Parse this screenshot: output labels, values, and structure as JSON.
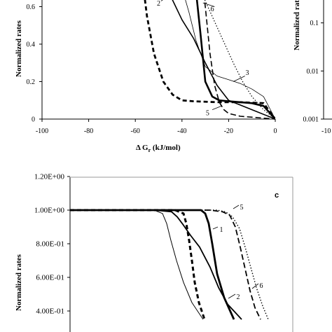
{
  "chart_data": [
    {
      "panel": "top-left",
      "type": "line",
      "xlabel": "Δ G_r (kJ/mol)",
      "xlabel_main": "Δ G",
      "xlabel_sub": "r",
      "xlabel_units": " (kJ/mol)",
      "ylabel": "Normalized rates",
      "xlim": [
        -100,
        0
      ],
      "ylim": [
        0,
        0.8
      ],
      "xticks": [
        "-100",
        "-80",
        "-60",
        "-40",
        "-20",
        "0"
      ],
      "yticks": [
        "0",
        "0.2",
        "0.4",
        "0.6"
      ],
      "series": [
        {
          "name": "1",
          "style": "thick-solid",
          "x": [
            -35,
            -32,
            -30,
            -27,
            -24,
            -20,
            -15,
            -10,
            -5,
            0
          ],
          "y": [
            0.8,
            0.45,
            0.2,
            0.12,
            0.1,
            0.095,
            0.09,
            0.085,
            0.07,
            0.0
          ]
        },
        {
          "name": "2",
          "style": "solid",
          "x": [
            -50,
            -47,
            -45,
            -40,
            -35,
            -30,
            -25,
            -20,
            -10,
            0
          ],
          "y": [
            0.8,
            0.74,
            0.66,
            0.53,
            0.43,
            0.3,
            0.18,
            0.1,
            0.05,
            0.0
          ]
        },
        {
          "name": "3",
          "style": "thin-solid",
          "x": [
            -43,
            -40,
            -37,
            -34,
            -30,
            -25,
            -20,
            -15,
            -10,
            -5,
            0
          ],
          "y": [
            0.8,
            0.7,
            0.57,
            0.42,
            0.28,
            0.23,
            0.21,
            0.19,
            0.16,
            0.12,
            0.0
          ]
        },
        {
          "name": "4",
          "style": "thick-dash",
          "x": [
            -57,
            -55,
            -52,
            -48,
            -44,
            -40,
            -35,
            -25,
            -15,
            -5,
            0
          ],
          "y": [
            0.75,
            0.55,
            0.35,
            0.2,
            0.13,
            0.1,
            0.095,
            0.09,
            0.09,
            0.085,
            0.0
          ]
        },
        {
          "name": "5",
          "style": "dash",
          "x": [
            -32,
            -30,
            -28,
            -26,
            -24,
            -22,
            -20,
            -15,
            -10,
            -5,
            0
          ],
          "y": [
            0.8,
            0.6,
            0.35,
            0.18,
            0.09,
            0.05,
            0.03,
            0.015,
            0.01,
            0.005,
            0.0
          ]
        },
        {
          "name": "6",
          "style": "dotted",
          "x": [
            -36,
            -33,
            -30,
            -26,
            -22,
            -18,
            -14,
            -10,
            -5,
            0
          ],
          "y": [
            0.8,
            0.72,
            0.63,
            0.52,
            0.41,
            0.3,
            0.2,
            0.12,
            0.05,
            0.0
          ]
        }
      ]
    },
    {
      "panel": "top-right",
      "type": "line",
      "ylabel": "Normalized rates",
      "yscale": "log",
      "yticks": [
        "0.1",
        "0.01",
        "0.001"
      ],
      "xticks": [
        "-10"
      ]
    },
    {
      "panel": "bottom",
      "type": "line",
      "panel_label": "c",
      "ylabel": "Normalized rates",
      "ylim": [
        0.35,
        1.2
      ],
      "yticks": [
        "1.20E+00",
        "1.00E+00",
        "8.00E-01",
        "6.00E-01",
        "4.00E-01"
      ],
      "series": [
        {
          "name": "1",
          "style": "thick-solid",
          "x": [
            0,
            250,
            287,
            293,
            298,
            303,
            310,
            320,
            334
          ],
          "y": [
            1.0,
            1.0,
            1.0,
            0.98,
            0.92,
            0.8,
            0.62,
            0.48,
            0.35
          ]
        },
        {
          "name": "2",
          "style": "solid",
          "x": [
            0,
            220,
            245,
            253,
            262,
            272,
            285,
            300,
            312,
            325,
            345
          ],
          "y": [
            1.0,
            1.0,
            0.99,
            0.96,
            0.91,
            0.85,
            0.78,
            0.66,
            0.54,
            0.44,
            0.35
          ]
        },
        {
          "name": "3",
          "style": "thin-solid",
          "x": [
            0,
            220,
            232,
            238,
            244,
            252,
            262,
            274,
            290
          ],
          "y": [
            1.0,
            1.0,
            0.98,
            0.92,
            0.82,
            0.7,
            0.57,
            0.45,
            0.35
          ]
        },
        {
          "name": "4",
          "style": "thick-dash",
          "x": [
            0,
            250,
            262,
            266,
            270,
            274,
            278,
            284,
            292
          ],
          "y": [
            1.0,
            1.0,
            0.98,
            0.92,
            0.82,
            0.7,
            0.57,
            0.45,
            0.35
          ]
        },
        {
          "name": "5",
          "style": "dash",
          "x": [
            0,
            300,
            318,
            328,
            336,
            343,
            350,
            357,
            364,
            372
          ],
          "y": [
            1.0,
            1.0,
            0.99,
            0.97,
            0.9,
            0.78,
            0.65,
            0.52,
            0.42,
            0.35
          ]
        },
        {
          "name": "6",
          "style": "dotted",
          "x": [
            0,
            310,
            322,
            332,
            342,
            350,
            358,
            366,
            375,
            383
          ],
          "y": [
            1.0,
            1.0,
            0.99,
            0.96,
            0.89,
            0.78,
            0.66,
            0.54,
            0.43,
            0.35
          ]
        }
      ]
    }
  ]
}
